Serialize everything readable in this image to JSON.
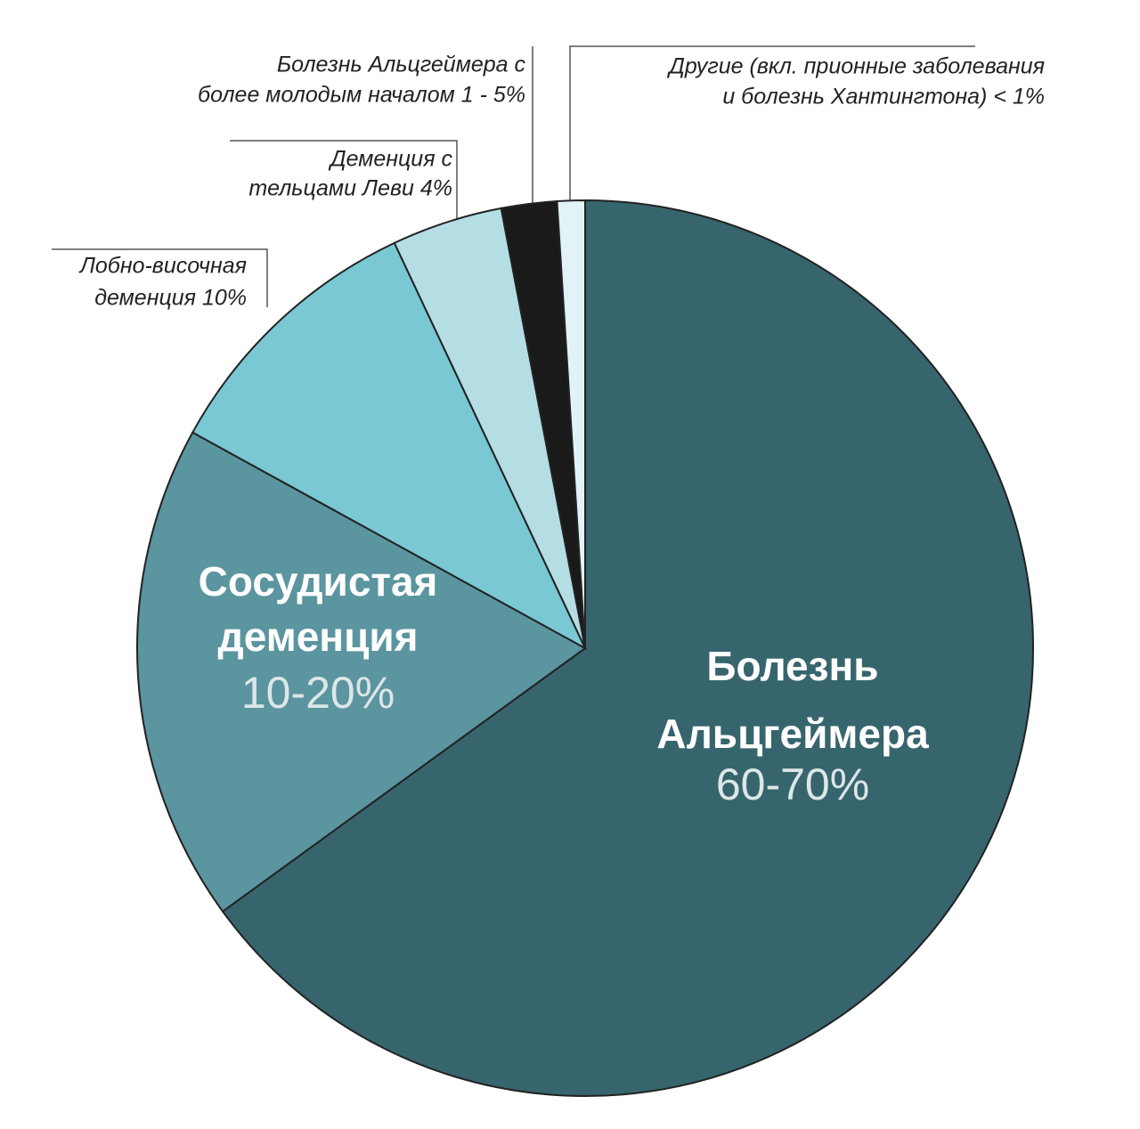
{
  "chart_data": {
    "type": "pie",
    "categories": [
      [
        "Болезнь",
        "Альцгеймера"
      ],
      [
        "Сосудистая",
        "деменция"
      ],
      [
        "Лобно-височная",
        "деменция 10%"
      ],
      [
        "Деменция  с",
        "тельцами Леви 4%"
      ],
      [
        "Болезнь Альцгеймера с",
        "более молодым началом 1 - 5%"
      ],
      [
        "Другие (вкл. прионные заболевания",
        "и болезнь Хантингтона) < 1%"
      ]
    ],
    "values": [
      65,
      18,
      10,
      4,
      2,
      1
    ],
    "value_labels": [
      "60-70%",
      "10-20%",
      null,
      null,
      null,
      null
    ],
    "colors": [
      "#37656d",
      "#5b959f",
      "#79c8d4",
      "#b4dee4",
      "#1a1a1a",
      "#e2f3f8"
    ]
  }
}
